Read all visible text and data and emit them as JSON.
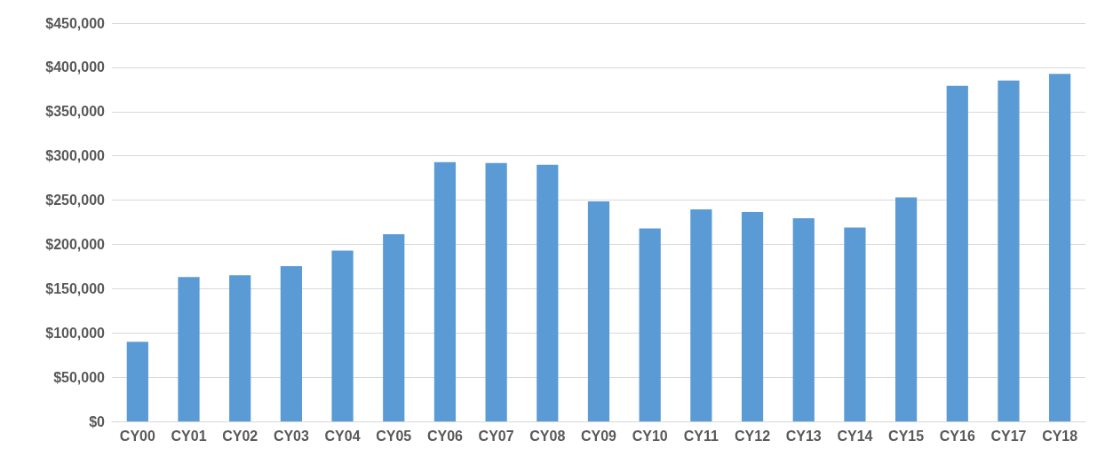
{
  "chart_data": {
    "type": "bar",
    "categories": [
      "CY00",
      "CY01",
      "CY02",
      "CY03",
      "CY04",
      "CY05",
      "CY06",
      "CY07",
      "CY08",
      "CY09",
      "CY10",
      "CY11",
      "CY12",
      "CY13",
      "CY14",
      "CY15",
      "CY16",
      "CY17",
      "CY18"
    ],
    "values": [
      90000,
      163000,
      165000,
      175500,
      193000,
      211500,
      293000,
      292000,
      290000,
      248500,
      218000,
      239500,
      236500,
      229500,
      219000,
      253000,
      379000,
      385000,
      392500
    ],
    "color": "#5b9bd5",
    "ylim": [
      0,
      450000
    ],
    "yticks": [
      {
        "value": 0,
        "label": "$0"
      },
      {
        "value": 50000,
        "label": "$50,000"
      },
      {
        "value": 100000,
        "label": "$100,000"
      },
      {
        "value": 150000,
        "label": "$150,000"
      },
      {
        "value": 200000,
        "label": "$200,000"
      },
      {
        "value": 250000,
        "label": "$250,000"
      },
      {
        "value": 300000,
        "label": "$300,000"
      },
      {
        "value": 350000,
        "label": "$350,000"
      },
      {
        "value": 400000,
        "label": "$400,000"
      },
      {
        "value": 450000,
        "label": "$450,000"
      }
    ],
    "grid": "y"
  }
}
